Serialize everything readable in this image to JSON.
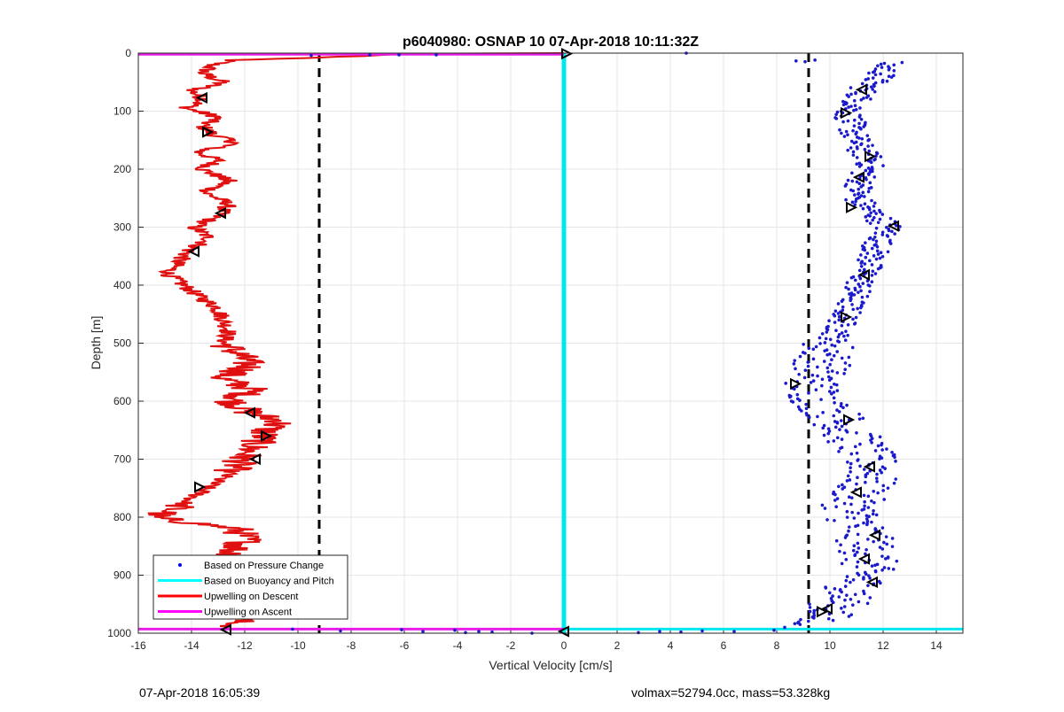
{
  "chart_data": {
    "type": "scatter",
    "title": "p6040980: OSNAP 10 07-Apr-2018 10:11:32Z",
    "xlabel": "Vertical Velocity [cm/s]",
    "ylabel": "Depth [m]",
    "xlim": [
      -16,
      15
    ],
    "ylim": [
      0,
      1000
    ],
    "y_reversed": true,
    "grid": true,
    "xticks": [
      -16,
      -14,
      -12,
      -10,
      -8,
      -6,
      -4,
      -2,
      0,
      2,
      4,
      6,
      8,
      10,
      12,
      14
    ],
    "yticks": [
      0,
      100,
      200,
      300,
      400,
      500,
      600,
      700,
      800,
      900,
      1000
    ],
    "legend_position": "bottom-left",
    "legend": [
      {
        "label": "Based on Pressure Change",
        "color": "#0000ff",
        "marker": "dot"
      },
      {
        "label": "Based on Buoyancy and Pitch",
        "color": "#00ffff",
        "marker": "line"
      },
      {
        "label": "Upwelling on Descent",
        "color": "#ff0000",
        "marker": "line"
      },
      {
        "label": "Upwelling on Ascent",
        "color": "#ff00ff",
        "marker": "line"
      }
    ],
    "reference_lines": [
      {
        "x": -9.2,
        "style": "dashed",
        "color": "#000000"
      },
      {
        "x": 9.2,
        "style": "dashed",
        "color": "#000000"
      }
    ],
    "descent_profile": [
      [
        -7.5,
        5
      ],
      [
        -12.5,
        12
      ],
      [
        -13.2,
        20
      ],
      [
        -13.6,
        35
      ],
      [
        -12.8,
        50
      ],
      [
        -14.0,
        65
      ],
      [
        -13.5,
        80
      ],
      [
        -14.2,
        95
      ],
      [
        -13.0,
        110
      ],
      [
        -13.6,
        125
      ],
      [
        -13.2,
        140
      ],
      [
        -12.3,
        155
      ],
      [
        -13.8,
        170
      ],
      [
        -13.0,
        185
      ],
      [
        -13.6,
        200
      ],
      [
        -12.6,
        220
      ],
      [
        -13.5,
        240
      ],
      [
        -12.6,
        260
      ],
      [
        -13.0,
        280
      ],
      [
        -13.9,
        300
      ],
      [
        -13.3,
        320
      ],
      [
        -14.1,
        340
      ],
      [
        -14.5,
        360
      ],
      [
        -14.9,
        380
      ],
      [
        -14.3,
        400
      ],
      [
        -13.7,
        420
      ],
      [
        -13.0,
        440
      ],
      [
        -12.8,
        460
      ],
      [
        -12.6,
        480
      ],
      [
        -12.8,
        500
      ],
      [
        -12.2,
        520
      ],
      [
        -11.8,
        540
      ],
      [
        -12.9,
        560
      ],
      [
        -11.7,
        580
      ],
      [
        -12.5,
        600
      ],
      [
        -11.8,
        620
      ],
      [
        -10.6,
        635
      ],
      [
        -11.2,
        650
      ],
      [
        -11.4,
        665
      ],
      [
        -11.8,
        685
      ],
      [
        -12.2,
        705
      ],
      [
        -12.6,
        725
      ],
      [
        -13.3,
        745
      ],
      [
        -13.9,
        765
      ],
      [
        -14.6,
        785
      ],
      [
        -15.5,
        800
      ],
      [
        -12.3,
        820
      ],
      [
        -11.9,
        840
      ],
      [
        -12.5,
        860
      ],
      [
        -12.1,
        880
      ],
      [
        -12.6,
        900
      ],
      [
        -12.2,
        920
      ],
      [
        -12.4,
        940
      ],
      [
        -12.8,
        960
      ],
      [
        -12.1,
        975
      ],
      [
        -12.7,
        990
      ]
    ],
    "descent_markers": [
      {
        "x": -13.6,
        "y": 77,
        "dir": "left"
      },
      {
        "x": -13.4,
        "y": 136,
        "dir": "right"
      },
      {
        "x": -12.9,
        "y": 276,
        "dir": "left"
      },
      {
        "x": -13.9,
        "y": 342,
        "dir": "left"
      },
      {
        "x": -11.8,
        "y": 620,
        "dir": "left"
      },
      {
        "x": -11.2,
        "y": 660,
        "dir": "right"
      },
      {
        "x": -11.6,
        "y": 700,
        "dir": "left"
      },
      {
        "x": -13.7,
        "y": 748,
        "dir": "right"
      },
      {
        "x": -12.7,
        "y": 994,
        "dir": "left"
      }
    ],
    "ascent_profile": [
      [
        12.2,
        15
      ],
      [
        11.9,
        40
      ],
      [
        11.3,
        60
      ],
      [
        11.0,
        85
      ],
      [
        10.7,
        105
      ],
      [
        10.9,
        140
      ],
      [
        11.2,
        170
      ],
      [
        11.6,
        185
      ],
      [
        11.2,
        215
      ],
      [
        11.0,
        250
      ],
      [
        11.6,
        275
      ],
      [
        12.2,
        300
      ],
      [
        11.8,
        330
      ],
      [
        11.4,
        370
      ],
      [
        11.0,
        410
      ],
      [
        10.6,
        450
      ],
      [
        10.3,
        480
      ],
      [
        9.9,
        510
      ],
      [
        9.7,
        540
      ],
      [
        9.3,
        575
      ],
      [
        9.6,
        600
      ],
      [
        10.3,
        630
      ],
      [
        10.8,
        660
      ],
      [
        11.3,
        690
      ],
      [
        11.7,
        720
      ],
      [
        11.2,
        750
      ],
      [
        10.8,
        780
      ],
      [
        11.0,
        810
      ],
      [
        11.3,
        840
      ],
      [
        11.5,
        870
      ],
      [
        11.2,
        900
      ],
      [
        10.8,
        930
      ],
      [
        10.2,
        955
      ],
      [
        9.6,
        975
      ],
      [
        9.0,
        985
      ],
      [
        7.0,
        993
      ],
      [
        4.0,
        996
      ],
      [
        1.0,
        998
      ]
    ],
    "ascent_markers": [
      {
        "x": 11.2,
        "y": 63,
        "dir": "left"
      },
      {
        "x": 10.6,
        "y": 103,
        "dir": "right"
      },
      {
        "x": 11.5,
        "y": 178,
        "dir": "right"
      },
      {
        "x": 11.1,
        "y": 214,
        "dir": "left"
      },
      {
        "x": 10.8,
        "y": 266,
        "dir": "right"
      },
      {
        "x": 12.4,
        "y": 298,
        "dir": "left"
      },
      {
        "x": 11.3,
        "y": 382,
        "dir": "left"
      },
      {
        "x": 10.6,
        "y": 455,
        "dir": "right"
      },
      {
        "x": 8.7,
        "y": 570,
        "dir": "right"
      },
      {
        "x": 10.7,
        "y": 632,
        "dir": "right"
      },
      {
        "x": 11.5,
        "y": 713,
        "dir": "left"
      },
      {
        "x": 11.0,
        "y": 757,
        "dir": "left"
      },
      {
        "x": 11.7,
        "y": 831,
        "dir": "left"
      },
      {
        "x": 11.3,
        "y": 872,
        "dir": "left"
      },
      {
        "x": 11.6,
        "y": 912,
        "dir": "left"
      },
      {
        "x": 9.9,
        "y": 958,
        "dir": "left"
      },
      {
        "x": 9.7,
        "y": 963,
        "dir": "right"
      }
    ],
    "surface_scatter": [
      [
        4.6,
        0
      ],
      [
        -7.3,
        3
      ],
      [
        -6.2,
        3
      ],
      [
        -4.8,
        3
      ],
      [
        -9.5,
        4
      ]
    ],
    "bottom_scatter": [
      [
        -10.2,
        993
      ],
      [
        -8.4,
        996
      ],
      [
        -6.1,
        994
      ],
      [
        -5.3,
        997
      ],
      [
        -4.1,
        995
      ],
      [
        -3.7,
        999
      ],
      [
        -3.2,
        997
      ],
      [
        -2.7,
        998
      ],
      [
        -1.2,
        1000
      ],
      [
        2.8,
        999
      ],
      [
        3.6,
        997
      ],
      [
        4.4,
        998
      ],
      [
        5.2,
        996
      ],
      [
        6.4,
        997
      ],
      [
        7.9,
        995
      ],
      [
        8.3,
        990
      ]
    ],
    "buoyancy_line_x": 0,
    "upwelling_ascent_line_y": 2,
    "upwelling_descent_bottom_y": 993,
    "cyan_bottom_y": 993
  },
  "footer": {
    "left": "07-Apr-2018 16:05:39",
    "right": "volmax=52794.0cc, mass=53.328kg"
  }
}
